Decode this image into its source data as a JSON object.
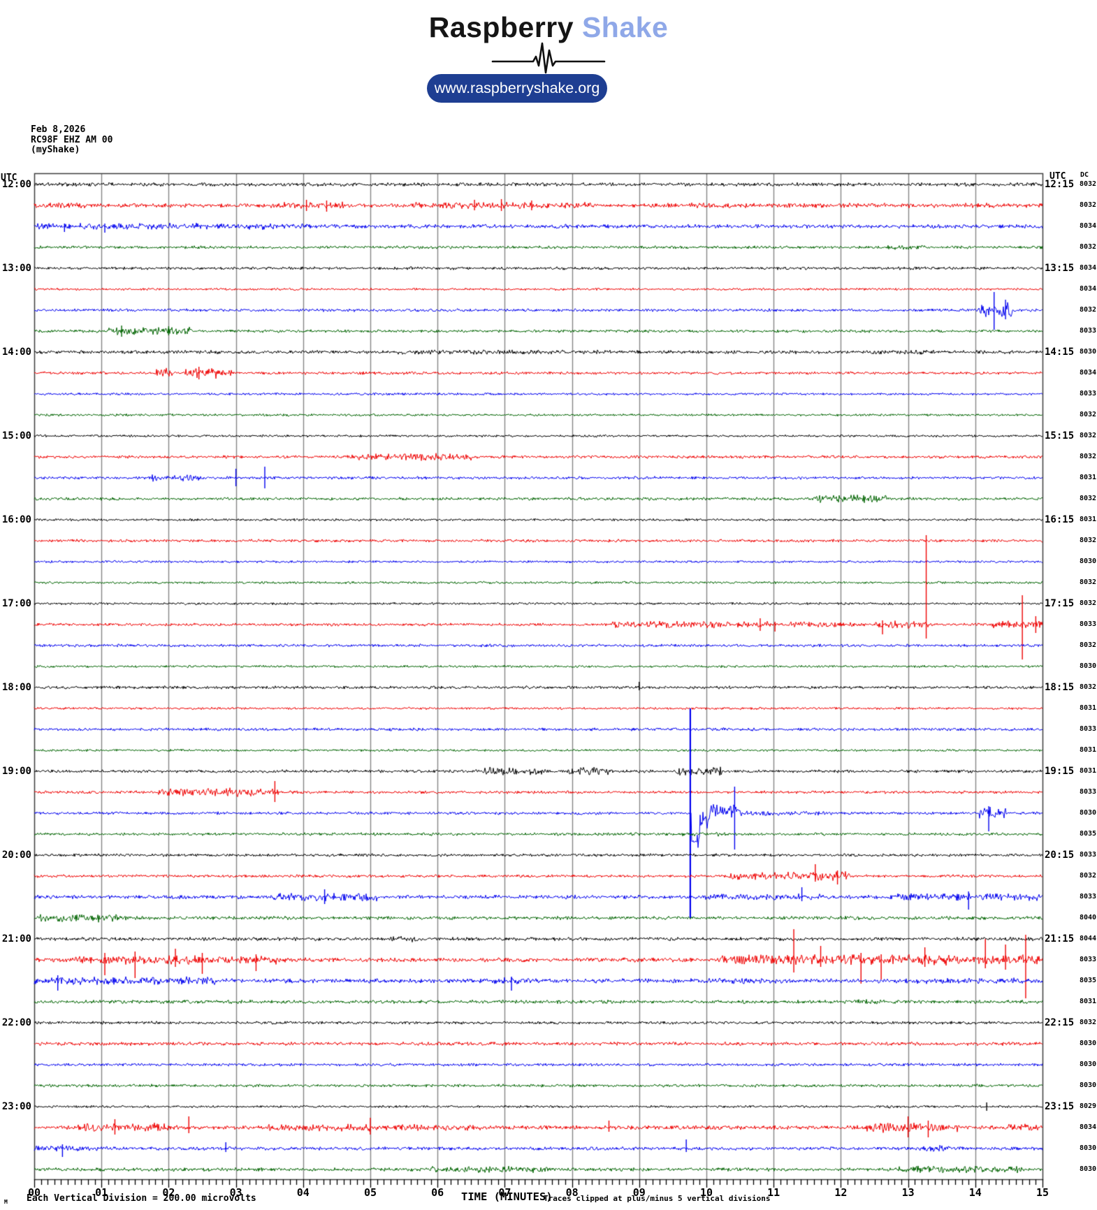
{
  "header": {
    "logo_primary": "Raspberry",
    "logo_secondary": "Shake",
    "url_button": "www.raspberryshake.org"
  },
  "station": {
    "date": "Feb 8,2026",
    "id": "RC98F EHZ AM 00",
    "network": "(myShake)"
  },
  "axes": {
    "utc_left": "UTC",
    "utc_right": "UTC",
    "dc_header": "DC",
    "left_hour_labels": [
      "12:00",
      "13:00",
      "14:00",
      "15:00",
      "16:00",
      "17:00",
      "18:00",
      "19:00",
      "20:00",
      "21:00",
      "22:00",
      "23:00"
    ],
    "right_hour_labels": [
      "12:15",
      "13:15",
      "14:15",
      "15:15",
      "16:15",
      "17:15",
      "18:15",
      "19:15",
      "20:15",
      "21:15",
      "22:15",
      "23:15"
    ],
    "minute_labels": [
      "00",
      "01",
      "02",
      "03",
      "04",
      "05",
      "06",
      "07",
      "08",
      "09",
      "10",
      "11",
      "12",
      "13",
      "14",
      "15"
    ],
    "time_axis_label": "TIME (MINUTES)",
    "scale_marker": "M",
    "scale_note": "Each Vertical Division =  200.00 microvolts",
    "clip_note": "Traces clipped at plus/minus 5 vertical divisions"
  },
  "chart_data": {
    "type": "line",
    "title": "RC98F EHZ AM 00 helicorder, Feb 8,2026",
    "xlabel": "TIME (MINUTES)",
    "x_range": [
      0,
      15
    ],
    "minutes_per_row": 15,
    "rows_per_hour": 4,
    "vertical_division_microvolts": 200,
    "clip_divisions": 5,
    "grid": "vertical-minute-lines",
    "palette": {
      "black": "#000000",
      "red": "#ee0000",
      "blue": "#0000ee",
      "green": "#006400"
    },
    "grid_color": "#858585",
    "border_color": "#3c3c3c",
    "rows": [
      {
        "t": "12:00",
        "c": "black",
        "dc": 8032,
        "a": 2.0
      },
      {
        "t": "12:15",
        "c": "red",
        "dc": 8032,
        "a": 2.2,
        "n": [
          [
            0,
            0.8,
            3.2
          ],
          [
            3.4,
            4.6,
            3.6
          ],
          [
            5.6,
            8.3,
            3.6
          ],
          [
            9.2,
            15,
            2.6
          ]
        ],
        "s": [
          [
            4.05,
            8,
            8
          ],
          [
            4.35,
            7,
            9
          ],
          [
            6.55,
            8,
            7
          ],
          [
            6.95,
            9,
            8
          ],
          [
            7.4,
            7,
            7
          ]
        ]
      },
      {
        "t": "12:30",
        "c": "blue",
        "dc": 8034,
        "a": 2.2,
        "n": [
          [
            0,
            4.1,
            3.4
          ]
        ],
        "s": [
          [
            0.45,
            4,
            8
          ],
          [
            1.05,
            4,
            9
          ]
        ]
      },
      {
        "t": "12:45",
        "c": "green",
        "dc": 8032,
        "a": 1.6,
        "n": [
          [
            12.7,
            13.3,
            2.6
          ]
        ]
      },
      {
        "t": "13:00",
        "c": "black",
        "dc": 8034,
        "a": 1.6
      },
      {
        "t": "13:15",
        "c": "red",
        "dc": 8034,
        "a": 1.3
      },
      {
        "t": "13:30",
        "c": "blue",
        "dc": 8032,
        "a": 1.6,
        "n": [
          [
            14.05,
            14.55,
            8
          ]
        ],
        "s": [
          [
            14.28,
            26,
            28
          ],
          [
            14.45,
            15,
            13
          ]
        ]
      },
      {
        "t": "13:45",
        "c": "green",
        "dc": 8033,
        "a": 1.6,
        "n": [
          [
            1.1,
            2.35,
            4.5
          ]
        ],
        "s": [
          [
            1.3,
            8,
            8
          ],
          [
            2.0,
            7,
            6
          ]
        ]
      },
      {
        "t": "14:00",
        "c": "black",
        "dc": 8030,
        "a": 1.9,
        "n": [
          [
            5.4,
            8.6,
            2.6
          ],
          [
            12.4,
            13.4,
            2.6
          ]
        ]
      },
      {
        "t": "14:15",
        "c": "red",
        "dc": 8034,
        "a": 1.6,
        "n": [
          [
            1.8,
            2.05,
            5.5
          ],
          [
            2.25,
            2.95,
            5.5
          ]
        ],
        "s": [
          [
            2.45,
            9,
            9
          ]
        ]
      },
      {
        "t": "14:30",
        "c": "blue",
        "dc": 8033,
        "a": 1.3
      },
      {
        "t": "14:45",
        "c": "green",
        "dc": 8032,
        "a": 1.3
      },
      {
        "t": "15:00",
        "c": "black",
        "dc": 8032,
        "a": 1.3
      },
      {
        "t": "15:15",
        "c": "red",
        "dc": 8032,
        "a": 1.6,
        "n": [
          [
            4.65,
            6.5,
            3.8
          ]
        ]
      },
      {
        "t": "15:30",
        "c": "blue",
        "dc": 8031,
        "a": 1.6,
        "n": [
          [
            1.7,
            2.5,
            4
          ]
        ],
        "s": [
          [
            3.0,
            13,
            12
          ],
          [
            3.43,
            16,
            15
          ]
        ]
      },
      {
        "t": "15:45",
        "c": "green",
        "dc": 8032,
        "a": 1.6,
        "n": [
          [
            11.6,
            12.7,
            4
          ]
        ]
      },
      {
        "t": "16:00",
        "c": "black",
        "dc": 8031,
        "a": 1.3
      },
      {
        "t": "16:15",
        "c": "red",
        "dc": 8032,
        "a": 1.6
      },
      {
        "t": "16:30",
        "c": "blue",
        "dc": 8030,
        "a": 1.3
      },
      {
        "t": "16:45",
        "c": "green",
        "dc": 8032,
        "a": 1.3
      },
      {
        "t": "17:00",
        "c": "black",
        "dc": 8032,
        "a": 1.3
      },
      {
        "t": "17:15",
        "c": "red",
        "dc": 8033,
        "a": 1.6,
        "n": [
          [
            8.6,
            10.95,
            3.8
          ],
          [
            11.2,
            12.25,
            3
          ],
          [
            12.5,
            13.3,
            4.5
          ],
          [
            14.25,
            15,
            3.8
          ]
        ],
        "s": [
          [
            10.8,
            9,
            9
          ],
          [
            11.02,
            4,
            10
          ],
          [
            12.62,
            6,
            14
          ],
          [
            13.27,
            128,
            20
          ],
          [
            14.7,
            42,
            50
          ],
          [
            14.9,
            12,
            12
          ]
        ]
      },
      {
        "t": "17:30",
        "c": "blue",
        "dc": 8032,
        "a": 1.6
      },
      {
        "t": "17:45",
        "c": "green",
        "dc": 8030,
        "a": 1.3
      },
      {
        "t": "18:00",
        "c": "black",
        "dc": 8032,
        "a": 1.6,
        "s": [
          [
            9.0,
            8,
            4
          ]
        ]
      },
      {
        "t": "18:15",
        "c": "red",
        "dc": 8031,
        "a": 1.3
      },
      {
        "t": "18:30",
        "c": "blue",
        "dc": 8033,
        "a": 1.6
      },
      {
        "t": "18:45",
        "c": "green",
        "dc": 8031,
        "a": 1.3
      },
      {
        "t": "19:00",
        "c": "black",
        "dc": 8031,
        "a": 1.6,
        "n": [
          [
            6.65,
            7.6,
            4.2
          ],
          [
            7.95,
            8.55,
            4.2
          ],
          [
            9.55,
            10.25,
            4.6
          ]
        ]
      },
      {
        "t": "19:15",
        "c": "red",
        "dc": 8033,
        "a": 1.6,
        "n": [
          [
            1.85,
            3.65,
            4.6
          ]
        ],
        "s": [
          [
            3.58,
            16,
            14
          ]
        ]
      },
      {
        "t": "19:30",
        "c": "blue",
        "dc": 8030,
        "a": 1.6,
        "cl": [
          9.76
        ],
        "n": [
          [
            9.85,
            10.45,
            8
          ],
          [
            10.5,
            11.8,
            2.6
          ],
          [
            14.05,
            14.45,
            6.5
          ]
        ],
        "s": [
          [
            10.42,
            38,
            52
          ],
          [
            14.2,
            10,
            26
          ]
        ],
        "o": [
          [
            9.78,
            9.9,
            40
          ],
          [
            9.9,
            10.05,
            10
          ],
          [
            10.05,
            10.5,
            -4
          ]
        ]
      },
      {
        "t": "19:45",
        "c": "green",
        "dc": 8035,
        "a": 1.6,
        "n": [
          [
            9.6,
            10.3,
            2.4
          ]
        ]
      },
      {
        "t": "20:00",
        "c": "black",
        "dc": 8033,
        "a": 1.6
      },
      {
        "t": "20:15",
        "c": "red",
        "dc": 8032,
        "a": 1.6,
        "n": [
          [
            10.35,
            12.15,
            4.6
          ]
        ],
        "s": [
          [
            11.62,
            17,
            8
          ],
          [
            11.95,
            8,
            12
          ]
        ]
      },
      {
        "t": "20:30",
        "c": "blue",
        "dc": 8033,
        "a": 2.1,
        "n": [
          [
            3.5,
            5.1,
            4.4
          ],
          [
            9.9,
            11.7,
            3.4
          ],
          [
            12.7,
            15,
            3.8
          ]
        ],
        "s": [
          [
            4.32,
            11,
            10
          ],
          [
            11.42,
            14,
            6
          ],
          [
            13.9,
            8,
            18
          ]
        ]
      },
      {
        "t": "20:45",
        "c": "green",
        "dc": 8040,
        "a": 1.9,
        "n": [
          [
            0,
            1.4,
            4.6
          ]
        ]
      },
      {
        "t": "21:00",
        "c": "black",
        "dc": 8044,
        "a": 1.9,
        "n": [
          [
            5.3,
            5.7,
            3.4
          ],
          [
            13.6,
            15,
            2.4
          ]
        ]
      },
      {
        "t": "21:15",
        "c": "red",
        "dc": 8033,
        "a": 2.4,
        "n": [
          [
            0.6,
            3.6,
            4.6
          ],
          [
            10.2,
            15,
            5.5
          ]
        ],
        "s": [
          [
            1.05,
            10,
            22
          ],
          [
            1.5,
            12,
            26
          ],
          [
            2.1,
            16,
            10
          ],
          [
            2.5,
            10,
            20
          ],
          [
            3.3,
            8,
            16
          ],
          [
            11.3,
            44,
            18
          ],
          [
            11.7,
            20,
            10
          ],
          [
            12.3,
            10,
            34
          ],
          [
            12.6,
            8,
            28
          ],
          [
            13.25,
            18,
            10
          ],
          [
            14.15,
            30,
            12
          ],
          [
            14.45,
            22,
            14
          ],
          [
            14.75,
            36,
            55
          ]
        ]
      },
      {
        "t": "21:30",
        "c": "blue",
        "dc": 8035,
        "a": 2.4,
        "n": [
          [
            0,
            2.7,
            4.4
          ],
          [
            6.85,
            7.35,
            3.6
          ],
          [
            9.7,
            11.2,
            3
          ],
          [
            12.9,
            15,
            3
          ]
        ],
        "s": [
          [
            0.35,
            8,
            14
          ],
          [
            7.1,
            6,
            14
          ]
        ]
      },
      {
        "t": "21:45",
        "c": "green",
        "dc": 8031,
        "a": 1.9,
        "n": [
          [
            12.2,
            12.9,
            3
          ]
        ]
      },
      {
        "t": "22:00",
        "c": "black",
        "dc": 8032,
        "a": 1.6
      },
      {
        "t": "22:15",
        "c": "red",
        "dc": 8030,
        "a": 1.9
      },
      {
        "t": "22:30",
        "c": "blue",
        "dc": 8030,
        "a": 1.6
      },
      {
        "t": "22:45",
        "c": "green",
        "dc": 8030,
        "a": 1.6
      },
      {
        "t": "23:00",
        "c": "black",
        "dc": 8029,
        "a": 1.3,
        "n": [
          [
            12.7,
            12.95,
            2
          ]
        ],
        "s": [
          [
            14.17,
            6,
            6
          ]
        ]
      },
      {
        "t": "23:15",
        "c": "red",
        "dc": 8034,
        "a": 2.2,
        "n": [
          [
            0.65,
            2.15,
            4.6
          ],
          [
            3.4,
            6.7,
            3.8
          ],
          [
            12.35,
            13.75,
            5.5
          ],
          [
            14.5,
            15,
            4.2
          ]
        ],
        "s": [
          [
            1.2,
            12,
            10
          ],
          [
            2.3,
            16,
            8
          ],
          [
            5.0,
            14,
            10
          ],
          [
            8.55,
            10,
            6
          ],
          [
            13.0,
            16,
            14
          ],
          [
            13.3,
            10,
            14
          ]
        ]
      },
      {
        "t": "23:30",
        "c": "blue",
        "dc": 8030,
        "a": 1.9,
        "n": [
          [
            0,
            1.1,
            3
          ],
          [
            13.15,
            13.65,
            3.4
          ]
        ],
        "s": [
          [
            0.42,
            6,
            12
          ],
          [
            2.85,
            9,
            5
          ],
          [
            9.7,
            13,
            5
          ]
        ]
      },
      {
        "t": "23:45",
        "c": "green",
        "dc": 8030,
        "a": 1.9,
        "n": [
          [
            5.9,
            7.7,
            3.4
          ],
          [
            12.85,
            14.7,
            3.6
          ]
        ]
      }
    ]
  }
}
